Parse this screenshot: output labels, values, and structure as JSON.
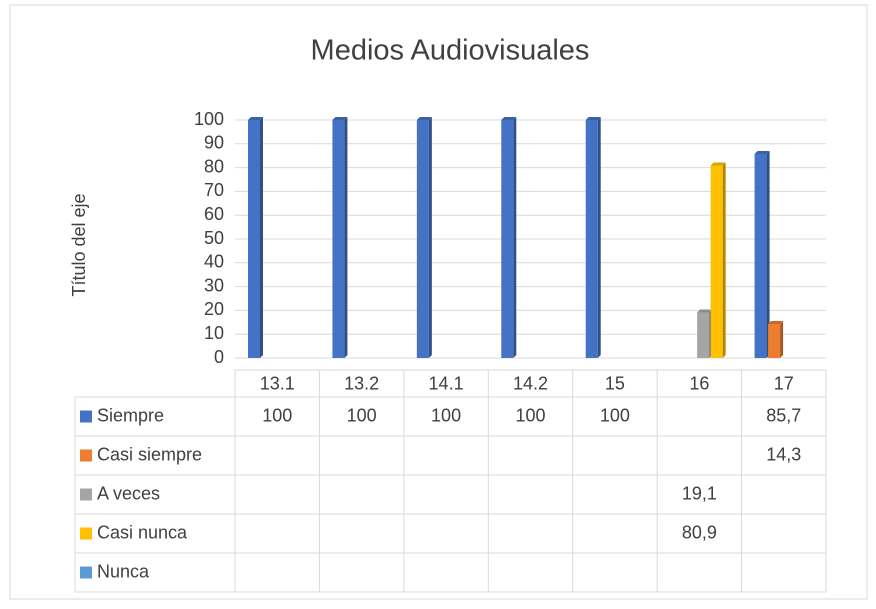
{
  "chart_data": {
    "type": "bar",
    "title": "Medios Audiovisuales",
    "y_axis_title": "Título del eje",
    "categories": [
      "13.1",
      "13.2",
      "14.1",
      "14.2",
      "15",
      "16",
      "17"
    ],
    "series": [
      {
        "name": "Siempre",
        "color": "#4472c4",
        "values": [
          100,
          100,
          100,
          100,
          100,
          null,
          85.7
        ],
        "value_labels": [
          "100",
          "100",
          "100",
          "100",
          "100",
          null,
          "85,7"
        ]
      },
      {
        "name": "Casi siempre",
        "color": "#ed7d31",
        "values": [
          null,
          null,
          null,
          null,
          null,
          null,
          14.3
        ],
        "value_labels": [
          null,
          null,
          null,
          null,
          null,
          null,
          "14,3"
        ]
      },
      {
        "name": "A veces",
        "color": "#a5a5a5",
        "values": [
          null,
          null,
          null,
          null,
          null,
          19.1,
          null
        ],
        "value_labels": [
          null,
          null,
          null,
          null,
          null,
          "19,1",
          null
        ]
      },
      {
        "name": "Casi nunca",
        "color": "#ffc000",
        "values": [
          null,
          null,
          null,
          null,
          null,
          80.9,
          null
        ],
        "value_labels": [
          null,
          null,
          null,
          null,
          null,
          "80,9",
          null
        ]
      },
      {
        "name": "Nunca",
        "color": "#5b9bd5",
        "values": [
          null,
          null,
          null,
          null,
          null,
          null,
          null
        ],
        "value_labels": [
          null,
          null,
          null,
          null,
          null,
          null,
          null
        ]
      }
    ],
    "ylim": [
      0,
      100
    ],
    "yticks": [
      0,
      10,
      20,
      30,
      40,
      50,
      60,
      70,
      80,
      90,
      100
    ],
    "grid": true,
    "data_table": true
  }
}
